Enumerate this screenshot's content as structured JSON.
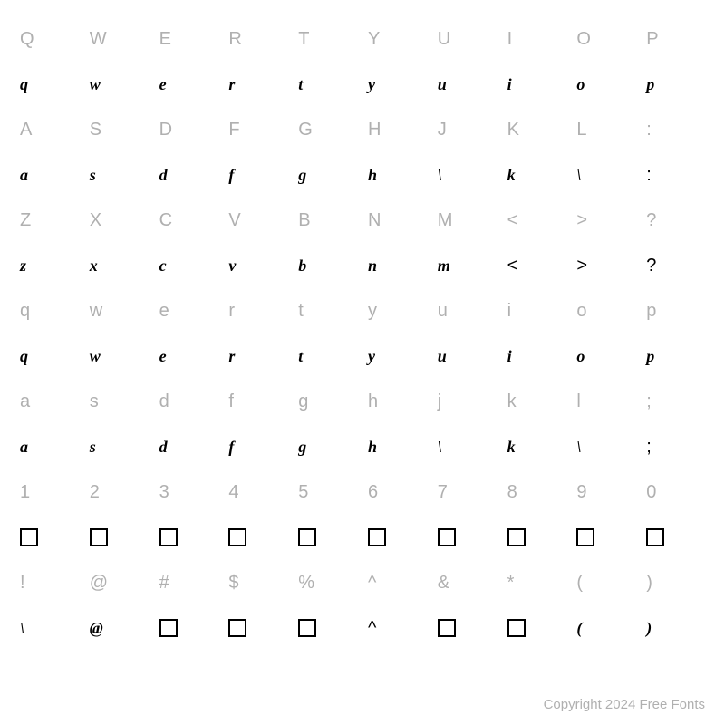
{
  "copyright": "Copyright 2024 Free Fonts",
  "key_color": "#b0b0b0",
  "glyph_color": "#000000",
  "background": "#ffffff",
  "rows": [
    {
      "type": "key",
      "cells": [
        "Q",
        "W",
        "E",
        "R",
        "T",
        "Y",
        "U",
        "I",
        "O",
        "P"
      ]
    },
    {
      "type": "glyph",
      "cells": [
        "q",
        "w",
        "e",
        "r",
        "t",
        "y",
        "u",
        "i",
        "o",
        "p"
      ],
      "styles": [
        "",
        "",
        "",
        "",
        "",
        "",
        "",
        "",
        "",
        ""
      ]
    },
    {
      "type": "key",
      "cells": [
        "A",
        "S",
        "D",
        "F",
        "G",
        "H",
        "J",
        "K",
        "L",
        ":"
      ]
    },
    {
      "type": "glyph",
      "cells": [
        "a",
        "s",
        "d",
        "f",
        "g",
        "h",
        "\\",
        "k",
        "\\",
        ":"
      ],
      "styles": [
        "",
        "",
        "",
        "",
        "",
        "",
        "",
        "",
        "",
        "plain"
      ]
    },
    {
      "type": "key",
      "cells": [
        "Z",
        "X",
        "C",
        "V",
        "B",
        "N",
        "M",
        "<",
        ">",
        "?"
      ]
    },
    {
      "type": "glyph",
      "cells": [
        "z",
        "x",
        "c",
        "v",
        "b",
        "n",
        "m",
        "<",
        ">",
        "?"
      ],
      "styles": [
        "",
        "",
        "",
        "",
        "",
        "",
        "",
        "plain",
        "plain",
        "plain"
      ]
    },
    {
      "type": "key",
      "cells": [
        "q",
        "w",
        "e",
        "r",
        "t",
        "y",
        "u",
        "i",
        "o",
        "p"
      ]
    },
    {
      "type": "glyph",
      "cells": [
        "q",
        "w",
        "e",
        "r",
        "t",
        "y",
        "u",
        "i",
        "o",
        "p"
      ],
      "styles": [
        "",
        "",
        "",
        "",
        "",
        "",
        "",
        "",
        "",
        ""
      ]
    },
    {
      "type": "key",
      "cells": [
        "a",
        "s",
        "d",
        "f",
        "g",
        "h",
        "j",
        "k",
        "l",
        ";"
      ]
    },
    {
      "type": "glyph",
      "cells": [
        "a",
        "s",
        "d",
        "f",
        "g",
        "h",
        "\\",
        "k",
        "\\",
        ";"
      ],
      "styles": [
        "",
        "",
        "",
        "",
        "",
        "",
        "",
        "",
        "",
        "plain"
      ]
    },
    {
      "type": "key",
      "cells": [
        "1",
        "2",
        "3",
        "4",
        "5",
        "6",
        "7",
        "8",
        "9",
        "0"
      ]
    },
    {
      "type": "glyph",
      "cells": [
        "□",
        "□",
        "□",
        "□",
        "□",
        "□",
        "□",
        "□",
        "□",
        "□"
      ],
      "styles": [
        "box",
        "box",
        "box",
        "box",
        "box",
        "box",
        "box",
        "box",
        "box",
        "box"
      ]
    },
    {
      "type": "key",
      "cells": [
        "!",
        "@",
        "#",
        "$",
        "%",
        "^",
        "&",
        "*",
        "(",
        ")"
      ]
    },
    {
      "type": "glyph",
      "cells": [
        "\\",
        "@",
        "□",
        "□",
        "□",
        "^",
        "□",
        "□",
        "(",
        ")"
      ],
      "styles": [
        "",
        "",
        "box",
        "box",
        "box",
        "plain",
        "box",
        "box",
        "",
        ""
      ]
    }
  ]
}
